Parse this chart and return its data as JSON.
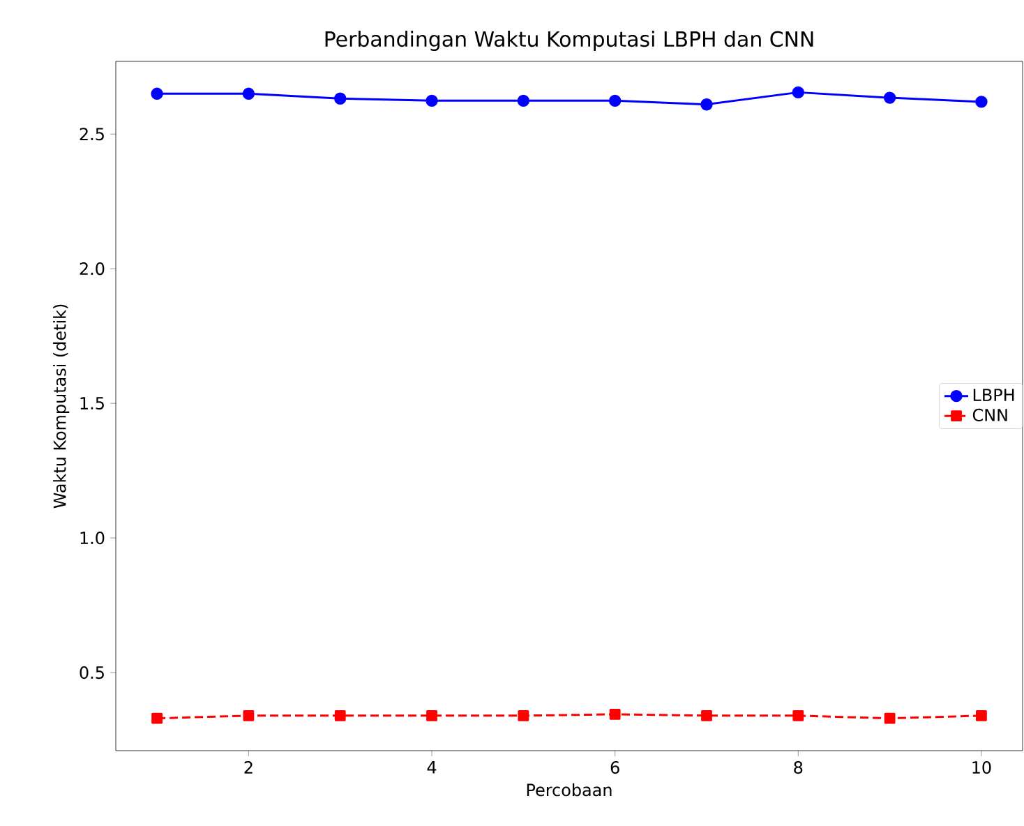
{
  "chart_data": {
    "type": "line",
    "title": "Perbandingan Waktu Komputasi LBPH dan CNN",
    "xlabel": "Percobaan",
    "ylabel": "Waktu Komputasi (detik)",
    "x": [
      1,
      2,
      3,
      4,
      5,
      6,
      7,
      8,
      9,
      10
    ],
    "series": [
      {
        "name": "LBPH",
        "color": "#0000ff",
        "marker": "circle",
        "line_style": "solid",
        "values": [
          2.65,
          2.65,
          2.632,
          2.624,
          2.624,
          2.624,
          2.61,
          2.655,
          2.635,
          2.62
        ]
      },
      {
        "name": "CNN",
        "color": "#ff0000",
        "marker": "square",
        "line_style": "dashed",
        "values": [
          0.33,
          0.34,
          0.34,
          0.34,
          0.34,
          0.345,
          0.34,
          0.34,
          0.33,
          0.34
        ]
      }
    ],
    "xlim": [
      0.55,
      10.45
    ],
    "ylim": [
      0.21,
      2.77
    ],
    "xticks": [
      2,
      4,
      6,
      8,
      10
    ],
    "yticks": [
      0.5,
      {
        "value": 1,
        "label": "1.0"
      },
      1.5,
      {
        "value": 2,
        "label": "2.0"
      },
      2.5
    ],
    "legend": "right",
    "grid": false
  }
}
